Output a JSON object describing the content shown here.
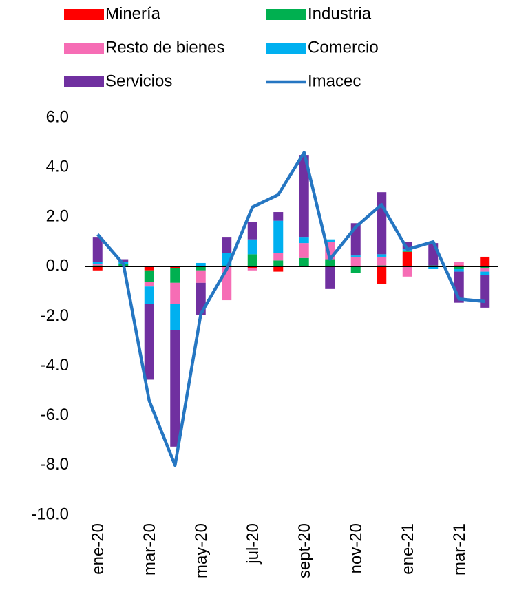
{
  "chart_data": {
    "type": "bar",
    "stacked": true,
    "categories": [
      "ene-20",
      null,
      "mar-20",
      null,
      "may-20",
      null,
      "jul-20",
      null,
      "sept-20",
      null,
      "nov-20",
      null,
      "ene-21",
      null,
      "mar-21",
      null
    ],
    "series": [
      {
        "name": "Minería",
        "color": "#ff0000",
        "values": [
          -0.15,
          0,
          -0.15,
          -0.05,
          0,
          0,
          -0.05,
          -0.2,
          0,
          0,
          0,
          -0.7,
          0.6,
          0,
          0.05,
          0.4
        ]
      },
      {
        "name": "Industria",
        "color": "#00b050",
        "values": [
          0.05,
          0.1,
          -0.45,
          -0.6,
          -0.15,
          0.05,
          0.5,
          0.25,
          0.35,
          0.3,
          -0.25,
          0.05,
          0.05,
          0.05,
          -0.1,
          -0.05
        ]
      },
      {
        "name": "Resto de bienes",
        "color": "#f66db5",
        "values": [
          0.05,
          0,
          -0.2,
          -0.85,
          -0.5,
          -1.35,
          -0.1,
          0.3,
          0.6,
          0.7,
          0.4,
          0.35,
          -0.4,
          0,
          0.15,
          -0.15
        ]
      },
      {
        "name": "Comercio",
        "color": "#00b0f0",
        "values": [
          0.1,
          0.1,
          -0.7,
          -1.05,
          0.15,
          0.5,
          0.6,
          1.3,
          0.25,
          0.1,
          0.05,
          0.1,
          0.05,
          -0.1,
          -0.1,
          -0.15
        ]
      },
      {
        "name": "Servicios",
        "color": "#7030a0",
        "values": [
          1.0,
          0.1,
          -3.05,
          -4.7,
          -1.3,
          0.65,
          0.7,
          0.35,
          3.3,
          -0.9,
          1.3,
          2.5,
          0.3,
          0.9,
          -1.25,
          -1.3
        ]
      },
      {
        "name": "Imacec",
        "type": "line",
        "color": "#2576c2",
        "values": [
          1.3,
          0.1,
          -5.4,
          -8.0,
          -1.9,
          -0.1,
          2.4,
          2.9,
          4.6,
          0.3,
          1.6,
          2.5,
          0.7,
          1.0,
          -1.3,
          -1.4
        ]
      }
    ],
    "ylim": [
      -10,
      6
    ],
    "yticks": [
      {
        "value": -10,
        "label": "-10.0"
      },
      {
        "value": -8,
        "label": "-8.0"
      },
      {
        "value": -6,
        "label": "-6.0"
      },
      {
        "value": -4,
        "label": "-4.0"
      },
      {
        "value": -2,
        "label": "-2.0"
      },
      {
        "value": 0,
        "label": "0.0"
      },
      {
        "value": 2,
        "label": "2.0"
      },
      {
        "value": 4,
        "label": "4.0"
      },
      {
        "value": 6,
        "label": "6.0"
      }
    ],
    "grid": false,
    "legend": "top"
  }
}
